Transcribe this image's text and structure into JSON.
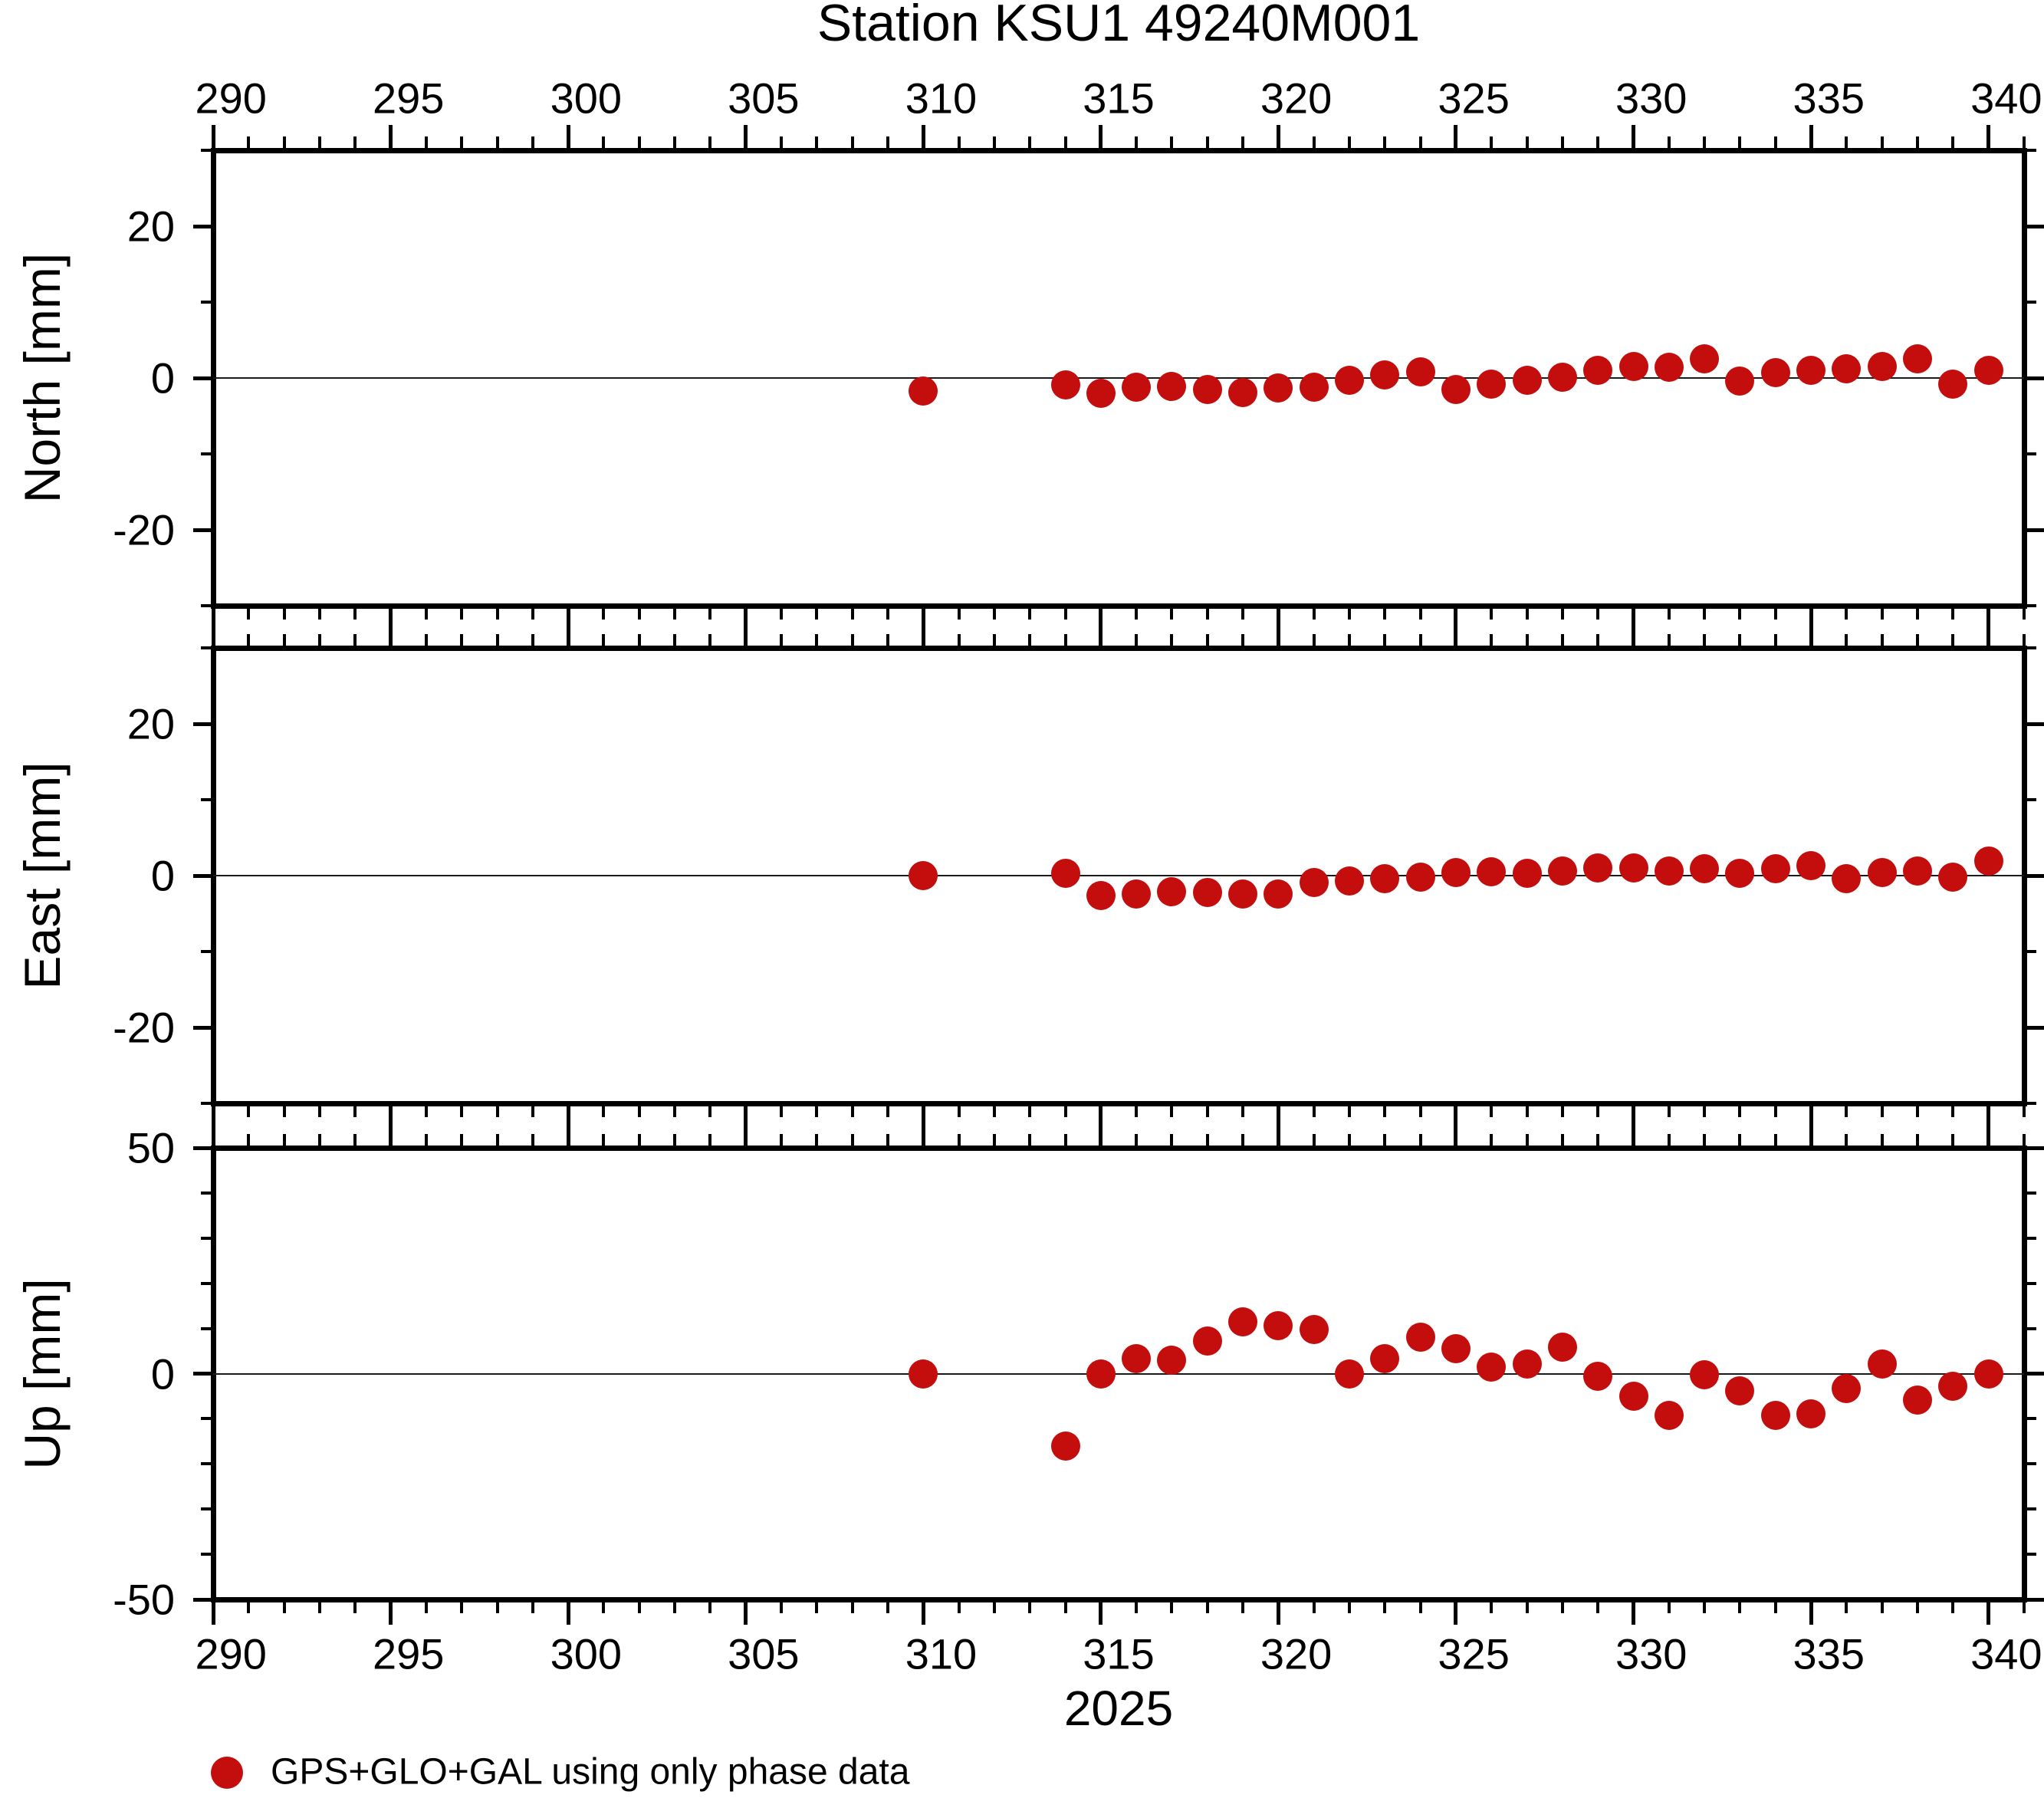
{
  "title": "Station KSU1 49240M001",
  "x_axis": {
    "label": "2025",
    "annotations": [
      290,
      295,
      300,
      305,
      310,
      315,
      320,
      325,
      330,
      335,
      340
    ],
    "range_days": [
      289.5,
      340.5
    ],
    "minor_tick_interval_days": 1,
    "major_tick_every_days": 5
  },
  "legend": {
    "label": "GPS+GLO+GAL using only phase data",
    "marker": "red-filled-circle"
  },
  "colors": {
    "marker": "#c40d0d",
    "axis": "#000000",
    "background": "#ffffff"
  },
  "chart_data": {
    "type": "scatter",
    "x_label": "2025",
    "x_units": "day of year",
    "x": [
      309.5,
      313.5,
      314.5,
      315.5,
      316.5,
      317.5,
      318.5,
      319.5,
      320.5,
      321.5,
      322.5,
      323.5,
      324.5,
      325.5,
      326.5,
      327.5,
      328.5,
      329.5,
      330.5,
      331.5,
      332.5,
      333.5,
      334.5,
      335.5,
      336.5,
      337.5,
      338.5,
      339.5
    ],
    "xlim": [
      289.5,
      340.5
    ],
    "grid": "horizontal-zero-line-only",
    "legend_position": "bottom-left",
    "series": [
      {
        "name": "North [mm]",
        "ylim": [
          -30,
          30
        ],
        "y_annotations": [
          -20,
          0,
          20
        ],
        "y_minor_tick": 10,
        "values": [
          -1.7,
          -0.9,
          -2.0,
          -1.2,
          -1.1,
          -1.5,
          -1.9,
          -1.3,
          -1.2,
          -0.3,
          0.4,
          0.8,
          -1.5,
          -0.8,
          -0.3,
          0.1,
          1.0,
          1.5,
          1.4,
          2.5,
          -0.4,
          0.7,
          1.0,
          1.2,
          1.5,
          2.5,
          -0.8,
          1.0
        ]
      },
      {
        "name": "East [mm]",
        "ylim": [
          -30,
          30
        ],
        "y_annotations": [
          -20,
          0,
          20
        ],
        "y_minor_tick": 10,
        "values": [
          0.0,
          0.3,
          -2.6,
          -2.4,
          -2.1,
          -2.2,
          -2.4,
          -2.4,
          -0.9,
          -0.7,
          -0.4,
          -0.2,
          0.4,
          0.5,
          0.3,
          0.6,
          1.0,
          1.0,
          0.6,
          0.9,
          0.3,
          0.9,
          1.3,
          -0.4,
          0.4,
          0.6,
          -0.2,
          1.9
        ]
      },
      {
        "name": "Up [mm]",
        "ylim": [
          -50,
          50
        ],
        "y_annotations": [
          -50,
          0,
          50
        ],
        "y_minor_tick": 10,
        "values": [
          0.0,
          -16.1,
          0.0,
          3.3,
          2.9,
          7.2,
          11.4,
          10.6,
          9.7,
          0.0,
          3.3,
          8.1,
          5.6,
          1.4,
          2.2,
          5.8,
          -0.6,
          -5.0,
          -9.2,
          -0.3,
          -3.9,
          -9.2,
          -8.9,
          -3.3,
          2.2,
          -5.8,
          -2.8,
          0.0
        ]
      }
    ]
  }
}
